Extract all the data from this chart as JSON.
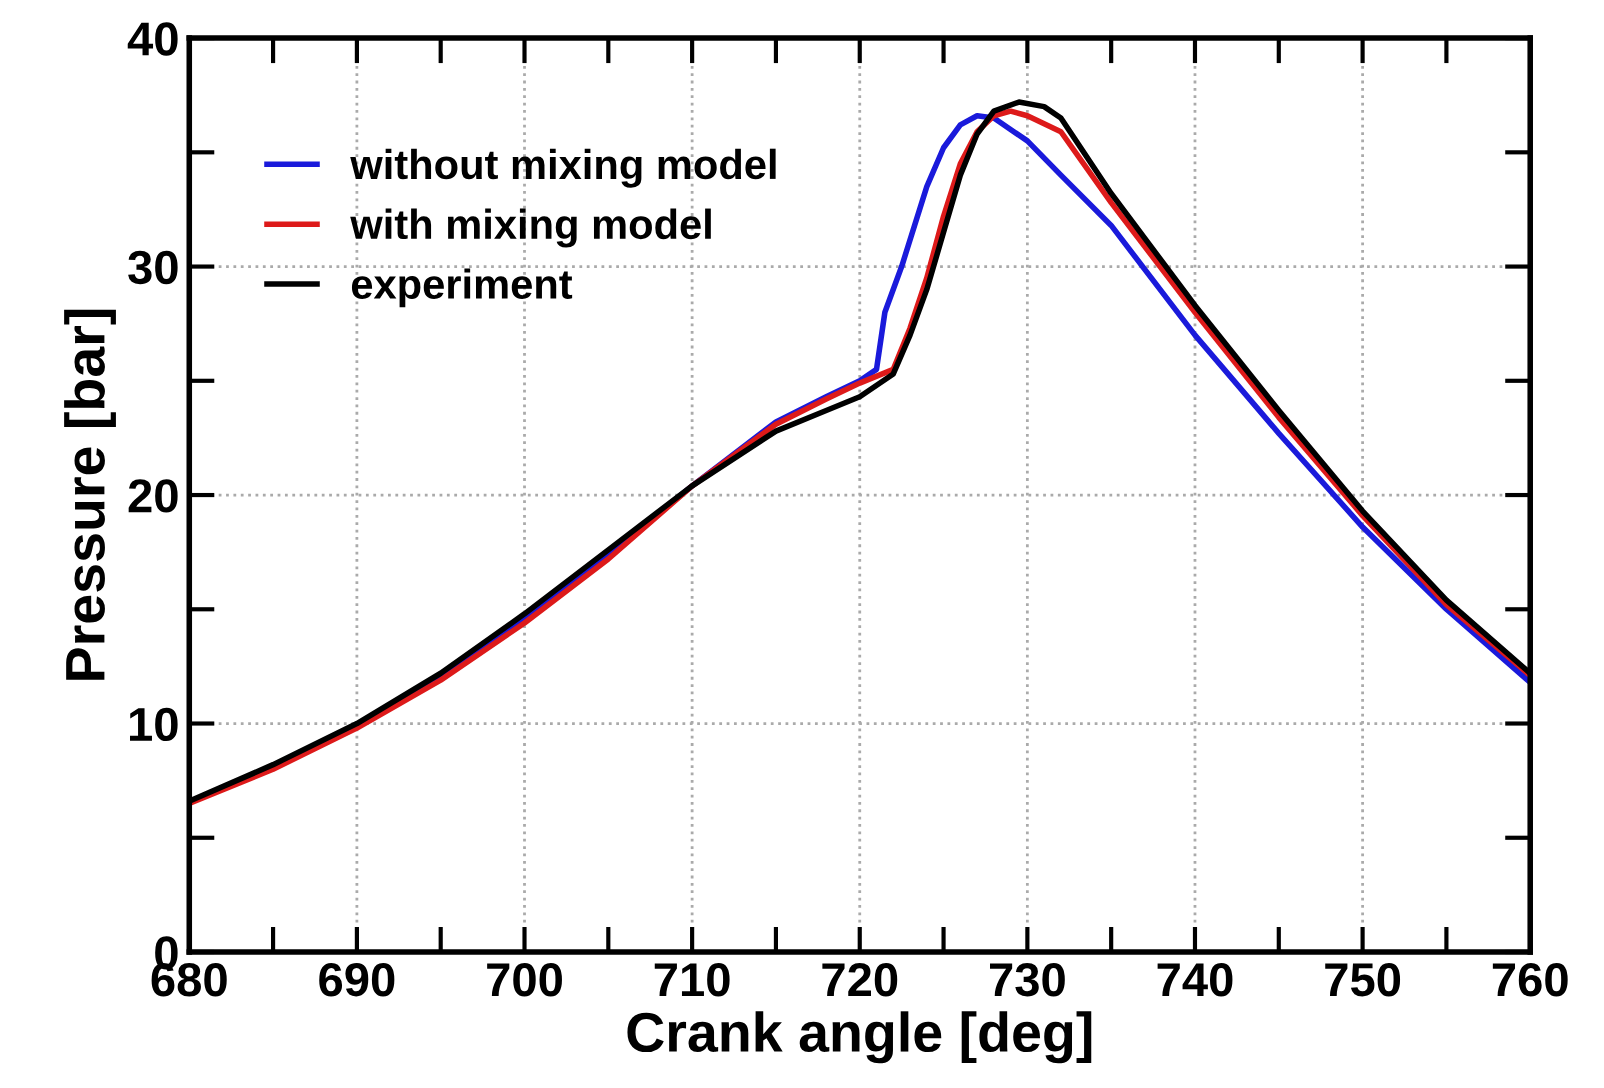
{
  "chart_data": {
    "type": "line",
    "xlabel": "Crank angle [deg]",
    "ylabel": "Pressure [bar]",
    "xlim": [
      680,
      760
    ],
    "xticks": [
      680,
      690,
      700,
      710,
      720,
      730,
      740,
      750,
      760
    ],
    "ylim": [
      0,
      40
    ],
    "yticks": [
      0,
      10,
      20,
      30,
      40
    ],
    "grid": true,
    "legend": "top left",
    "line_style": "solid",
    "marker": "none",
    "series": [
      {
        "name": "without mixing model",
        "color": "#1a1adb",
        "x": [
          690,
          695,
          700,
          705,
          710,
          715,
          718,
          720,
          721,
          721.5,
          722.5,
          724,
          725,
          726,
          727,
          728,
          730,
          732,
          735,
          740,
          745,
          750,
          755,
          760
        ],
        "values": [
          9.9,
          12.1,
          14.6,
          17.4,
          20.4,
          23.2,
          24.3,
          25.0,
          25.5,
          28.0,
          30.0,
          33.5,
          35.2,
          36.2,
          36.6,
          36.5,
          35.5,
          34.0,
          31.8,
          27.0,
          22.7,
          18.6,
          15.0,
          11.8
        ]
      },
      {
        "name": "with mixing model",
        "color": "#dd1a1a",
        "x": [
          680,
          685,
          690,
          695,
          700,
          705,
          710,
          715,
          718,
          720,
          722,
          723,
          724,
          725,
          726,
          727,
          728,
          729,
          730,
          732,
          735,
          740,
          745,
          750,
          755,
          760
        ],
        "values": [
          6.5,
          8.0,
          9.8,
          11.9,
          14.4,
          17.2,
          20.4,
          23.1,
          24.2,
          24.9,
          25.5,
          27.3,
          29.5,
          32.2,
          34.5,
          35.9,
          36.6,
          36.8,
          36.6,
          35.9,
          32.8,
          28.0,
          23.4,
          19.1,
          15.2,
          12.1
        ]
      },
      {
        "name": "experiment",
        "color": "#000000",
        "x": [
          680,
          685,
          690,
          695,
          700,
          705,
          710,
          715,
          718,
          720,
          722,
          723,
          724,
          725,
          726,
          727,
          728,
          729.5,
          731,
          732,
          735,
          740,
          745,
          750,
          755,
          760
        ],
        "values": [
          6.6,
          8.2,
          10.0,
          12.2,
          14.8,
          17.6,
          20.4,
          22.8,
          23.7,
          24.3,
          25.3,
          27.0,
          29.0,
          31.5,
          34.0,
          35.8,
          36.8,
          37.2,
          37.0,
          36.5,
          33.2,
          28.3,
          23.7,
          19.3,
          15.4,
          12.2
        ]
      }
    ]
  }
}
